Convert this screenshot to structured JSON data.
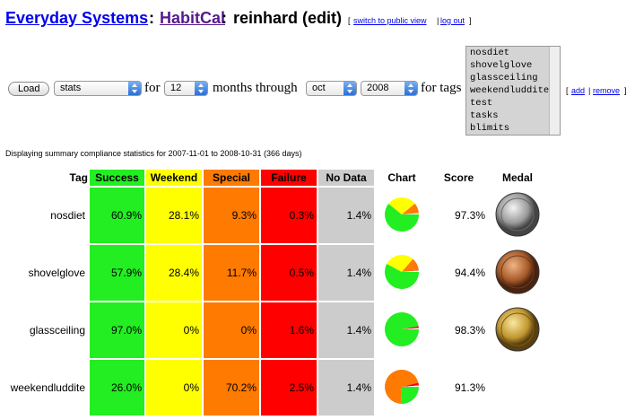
{
  "header": {
    "site": "Everyday Systems",
    "separator": ":",
    "app": "HabitCal",
    "user": "reinhard (edit)",
    "bracket_open": "[",
    "link_separator": "|",
    "bracket_close": "]",
    "links": [
      "switch to public view",
      "log out"
    ]
  },
  "controls": {
    "button": "Load",
    "report": "stats",
    "for": "for",
    "months": "12",
    "months_through": "months through",
    "month": "oct",
    "year": "2008",
    "for_tags": "for tags",
    "tags": [
      "nosdiet",
      "shovelglove",
      "glassceiling",
      "weekendluddite",
      "test",
      "tasks",
      "blimits"
    ],
    "tag_links": [
      "add",
      "remove"
    ]
  },
  "summary": "Displaying summary compliance statistics for 2007-11-01 to 2008-10-31 (366 days)",
  "table": {
    "columns": [
      "Tag",
      "Success",
      "Weekend",
      "Special",
      "Failure",
      "No Data",
      "Chart",
      "Score",
      "Medal"
    ],
    "rows": [
      [
        "nosdiet",
        "60.9%",
        "28.1%",
        "9.3%",
        "0.3%",
        "1.4%",
        "97.3%"
      ],
      [
        "shovelglove",
        "57.9%",
        "28.4%",
        "11.7%",
        "0.5%",
        "1.4%",
        "94.4%"
      ],
      [
        "glassceiling",
        "97.0%",
        "0%",
        "0%",
        "1.6%",
        "1.4%",
        "98.3%"
      ],
      [
        "weekendluddite",
        "26.0%",
        "0%",
        "70.2%",
        "2.5%",
        "1.4%",
        "91.3%"
      ]
    ]
  }
}
